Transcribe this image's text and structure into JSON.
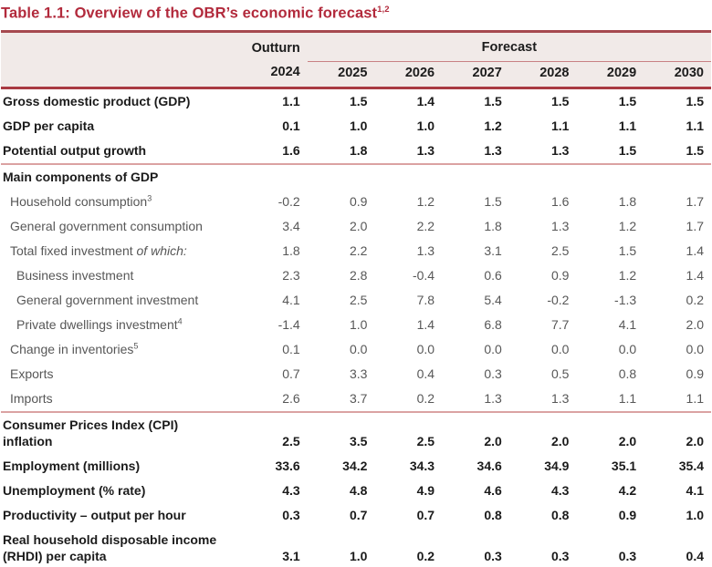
{
  "title": {
    "text": "Table 1.1: Overview of the OBR’s economic forecast",
    "superscript": "1,2"
  },
  "colors": {
    "accent_red": "#b22a3c",
    "header_background": "#f1eae8",
    "thick_border_top": "#a6494f",
    "thick_border_bottom": "#b12733",
    "pink_separator": "#dba2a2"
  },
  "table": {
    "header": {
      "outturn_label": "Outturn",
      "forecast_label": "Forecast",
      "years": [
        "2024",
        "2025",
        "2026",
        "2027",
        "2028",
        "2029",
        "2030"
      ]
    },
    "rows": [
      {
        "label": "Gross domestic product (GDP)",
        "bold": true,
        "indent": 0,
        "values": [
          "1.1",
          "1.5",
          "1.4",
          "1.5",
          "1.5",
          "1.5",
          "1.5"
        ]
      },
      {
        "label": "GDP per capita",
        "bold": true,
        "indent": 0,
        "values": [
          "0.1",
          "1.0",
          "1.0",
          "1.2",
          "1.1",
          "1.1",
          "1.1"
        ]
      },
      {
        "label": "Potential output growth",
        "bold": true,
        "indent": 0,
        "values": [
          "1.6",
          "1.8",
          "1.3",
          "1.3",
          "1.3",
          "1.5",
          "1.5"
        ],
        "separator_after": true
      },
      {
        "label": "Main components of GDP",
        "bold": true,
        "indent": 0,
        "values": []
      },
      {
        "label": "Household consumption",
        "superscript": "3",
        "bold": false,
        "indent": 1,
        "values": [
          "-0.2",
          "0.9",
          "1.2",
          "1.5",
          "1.6",
          "1.8",
          "1.7"
        ]
      },
      {
        "label": "General government consumption",
        "bold": false,
        "indent": 1,
        "values": [
          "3.4",
          "2.0",
          "2.2",
          "1.8",
          "1.3",
          "1.2",
          "1.7"
        ]
      },
      {
        "label": "Total fixed investment ",
        "italic_suffix": "of which:",
        "bold": false,
        "indent": 1,
        "values": [
          "1.8",
          "2.2",
          "1.3",
          "3.1",
          "2.5",
          "1.5",
          "1.4"
        ]
      },
      {
        "label": "Business investment",
        "bold": false,
        "indent": 2,
        "values": [
          "2.3",
          "2.8",
          "-0.4",
          "0.6",
          "0.9",
          "1.2",
          "1.4"
        ]
      },
      {
        "label": "General government investment",
        "bold": false,
        "indent": 2,
        "values": [
          "4.1",
          "2.5",
          "7.8",
          "5.4",
          "-0.2",
          "-1.3",
          "0.2"
        ]
      },
      {
        "label": "Private dwellings investment",
        "superscript": "4",
        "bold": false,
        "indent": 2,
        "values": [
          "-1.4",
          "1.0",
          "1.4",
          "6.8",
          "7.7",
          "4.1",
          "2.0"
        ]
      },
      {
        "label": "Change in inventories",
        "superscript": "5",
        "bold": false,
        "indent": 1,
        "values": [
          "0.1",
          "0.0",
          "0.0",
          "0.0",
          "0.0",
          "0.0",
          "0.0"
        ]
      },
      {
        "label": "Exports",
        "bold": false,
        "indent": 1,
        "values": [
          "0.7",
          "3.3",
          "0.4",
          "0.3",
          "0.5",
          "0.8",
          "0.9"
        ]
      },
      {
        "label": "Imports",
        "bold": false,
        "indent": 1,
        "values": [
          "2.6",
          "3.7",
          "0.2",
          "1.3",
          "1.3",
          "1.1",
          "1.1"
        ],
        "separator_after": true
      },
      {
        "label": "Consumer Prices Index (CPI)",
        "label2": "inflation",
        "bold": true,
        "indent": 0,
        "values": [
          "2.5",
          "3.5",
          "2.5",
          "2.0",
          "2.0",
          "2.0",
          "2.0"
        ]
      },
      {
        "label": "Employment (millions)",
        "bold": true,
        "indent": 0,
        "values": [
          "33.6",
          "34.2",
          "34.3",
          "34.6",
          "34.9",
          "35.1",
          "35.4"
        ]
      },
      {
        "label": "Unemployment (% rate)",
        "bold": true,
        "indent": 0,
        "values": [
          "4.3",
          "4.8",
          "4.9",
          "4.6",
          "4.3",
          "4.2",
          "4.1"
        ]
      },
      {
        "label": "Productivity – output per hour",
        "bold": true,
        "indent": 0,
        "values": [
          "0.3",
          "0.7",
          "0.7",
          "0.8",
          "0.8",
          "0.9",
          "1.0"
        ]
      },
      {
        "label": "Real household disposable income",
        "label2": "(RHDI) per capita",
        "bold": true,
        "indent": 0,
        "values": [
          "3.1",
          "1.0",
          "0.2",
          "0.3",
          "0.3",
          "0.3",
          "0.4"
        ]
      }
    ]
  }
}
